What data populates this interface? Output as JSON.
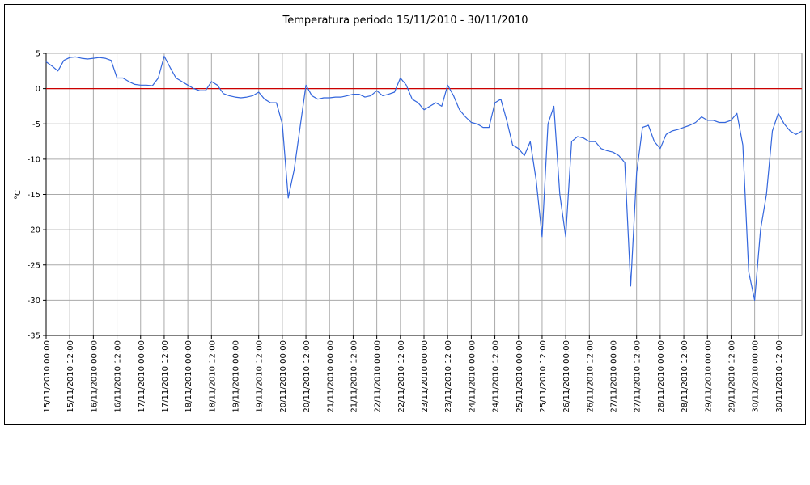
{
  "chart_data": {
    "type": "line",
    "title": "Temperatura periodo 15/11/2010 - 30/11/2010",
    "y_label": "°C",
    "x": [
      "15/11/2010 00:00",
      "15/11/2010 03:00",
      "15/11/2010 06:00",
      "15/11/2010 09:00",
      "15/11/2010 12:00",
      "15/11/2010 15:00",
      "15/11/2010 18:00",
      "15/11/2010 21:00",
      "16/11/2010 00:00",
      "16/11/2010 03:00",
      "16/11/2010 06:00",
      "16/11/2010 09:00",
      "16/11/2010 12:00",
      "16/11/2010 15:00",
      "16/11/2010 18:00",
      "16/11/2010 21:00",
      "17/11/2010 00:00",
      "17/11/2010 03:00",
      "17/11/2010 06:00",
      "17/11/2010 09:00",
      "17/11/2010 12:00",
      "17/11/2010 15:00",
      "17/11/2010 18:00",
      "17/11/2010 21:00",
      "18/11/2010 00:00",
      "18/11/2010 03:00",
      "18/11/2010 06:00",
      "18/11/2010 09:00",
      "18/11/2010 12:00",
      "18/11/2010 15:00",
      "18/11/2010 18:00",
      "18/11/2010 21:00",
      "19/11/2010 00:00",
      "19/11/2010 03:00",
      "19/11/2010 06:00",
      "19/11/2010 09:00",
      "19/11/2010 12:00",
      "19/11/2010 15:00",
      "19/11/2010 18:00",
      "19/11/2010 21:00",
      "20/11/2010 00:00",
      "20/11/2010 03:00",
      "20/11/2010 06:00",
      "20/11/2010 09:00",
      "20/11/2010 12:00",
      "20/11/2010 15:00",
      "20/11/2010 18:00",
      "20/11/2010 21:00",
      "21/11/2010 00:00",
      "21/11/2010 03:00",
      "21/11/2010 06:00",
      "21/11/2010 09:00",
      "21/11/2010 12:00",
      "21/11/2010 15:00",
      "21/11/2010 18:00",
      "21/11/2010 21:00",
      "22/11/2010 00:00",
      "22/11/2010 03:00",
      "22/11/2010 06:00",
      "22/11/2010 09:00",
      "22/11/2010 12:00",
      "22/11/2010 15:00",
      "22/11/2010 18:00",
      "22/11/2010 21:00",
      "23/11/2010 00:00",
      "23/11/2010 03:00",
      "23/11/2010 06:00",
      "23/11/2010 09:00",
      "23/11/2010 12:00",
      "23/11/2010 15:00",
      "23/11/2010 18:00",
      "23/11/2010 21:00",
      "24/11/2010 00:00",
      "24/11/2010 03:00",
      "24/11/2010 06:00",
      "24/11/2010 09:00",
      "24/11/2010 12:00",
      "24/11/2010 15:00",
      "24/11/2010 18:00",
      "24/11/2010 21:00",
      "25/11/2010 00:00",
      "25/11/2010 03:00",
      "25/11/2010 06:00",
      "25/11/2010 09:00",
      "25/11/2010 12:00",
      "25/11/2010 15:00",
      "25/11/2010 18:00",
      "25/11/2010 21:00",
      "26/11/2010 00:00",
      "26/11/2010 03:00",
      "26/11/2010 06:00",
      "26/11/2010 09:00",
      "26/11/2010 12:00",
      "26/11/2010 15:00",
      "26/11/2010 18:00",
      "26/11/2010 21:00",
      "27/11/2010 00:00",
      "27/11/2010 03:00",
      "27/11/2010 06:00",
      "27/11/2010 09:00",
      "27/11/2010 12:00",
      "27/11/2010 15:00",
      "27/11/2010 18:00",
      "27/11/2010 21:00",
      "28/11/2010 00:00",
      "28/11/2010 03:00",
      "28/11/2010 06:00",
      "28/11/2010 09:00",
      "28/11/2010 12:00",
      "28/11/2010 15:00",
      "28/11/2010 18:00",
      "28/11/2010 21:00",
      "29/11/2010 00:00",
      "29/11/2010 03:00",
      "29/11/2010 06:00",
      "29/11/2010 09:00",
      "29/11/2010 12:00",
      "29/11/2010 15:00",
      "29/11/2010 18:00",
      "29/11/2010 21:00",
      "30/11/2010 00:00",
      "30/11/2010 03:00",
      "30/11/2010 06:00",
      "30/11/2010 09:00",
      "30/11/2010 12:00",
      "30/11/2010 15:00",
      "30/11/2010 18:00",
      "30/11/2010 21:00",
      "01/12/2010 00:00"
    ],
    "values": [
      3.8,
      3.2,
      2.5,
      4.0,
      4.4,
      4.5,
      4.3,
      4.2,
      4.3,
      4.4,
      4.3,
      4.0,
      1.5,
      1.5,
      1.0,
      0.6,
      0.5,
      0.5,
      0.4,
      1.5,
      4.6,
      3.0,
      1.5,
      1.0,
      0.5,
      0,
      -0.3,
      -0.3,
      1.0,
      0.5,
      -0.7,
      -1.0,
      -1.2,
      -1.3,
      -1.2,
      -1.0,
      -0.5,
      -1.5,
      -2.0,
      -2.0,
      -5,
      -15.5,
      -11.5,
      -5.5,
      0.5,
      -1.0,
      -1.5,
      -1.3,
      -1.3,
      -1.2,
      -1.2,
      -1.0,
      -0.8,
      -0.8,
      -1.2,
      -1.0,
      -0.3,
      -1.0,
      -0.8,
      -0.5,
      1.5,
      0.5,
      -1.5,
      -2.0,
      -3.0,
      -2.5,
      -2.0,
      -2.5,
      0.5,
      -1.0,
      -3.0,
      -4.0,
      -4.8,
      -5.0,
      -5.5,
      -5.5,
      -2.0,
      -1.5,
      -4.5,
      -8.0,
      -8.5,
      -9.5,
      -7.5,
      -13,
      -21,
      -5,
      -2.5,
      -15,
      -21,
      -7.5,
      -6.8,
      -7.0,
      -7.5,
      -7.5,
      -8.5,
      -8.8,
      -9.0,
      -9.5,
      -10.5,
      -28,
      -12,
      -5.5,
      -5.2,
      -7.5,
      -8.5,
      -6.5,
      -6.0,
      -5.8,
      -5.5,
      -5.2,
      -4.8,
      -4.0,
      -4.5,
      -4.5,
      -4.8,
      -4.8,
      -4.5,
      -3.5,
      -8,
      -26,
      -30,
      -20,
      -15,
      -6,
      -3.5,
      -5,
      -6,
      -6.5,
      -6
    ],
    "color": "#3366dd",
    "xlim": [
      "15/11/2010 00:00",
      "01/12/2010 00:00"
    ],
    "xticks": [
      "15/11/2010 00:00",
      "15/11/2010 12:00",
      "16/11/2010 00:00",
      "16/11/2010 12:00",
      "17/11/2010 00:00",
      "17/11/2010 12:00",
      "18/11/2010 00:00",
      "18/11/2010 12:00",
      "19/11/2010 00:00",
      "19/11/2010 12:00",
      "20/11/2010 00:00",
      "20/11/2010 12:00",
      "21/11/2010 00:00",
      "21/11/2010 12:00",
      "22/11/2010 00:00",
      "22/11/2010 12:00",
      "23/11/2010 00:00",
      "23/11/2010 12:00",
      "24/11/2010 00:00",
      "24/11/2010 12:00",
      "25/11/2010 00:00",
      "25/11/2010 12:00",
      "26/11/2010 00:00",
      "26/11/2010 12:00",
      "27/11/2010 00:00",
      "27/11/2010 12:00",
      "28/11/2010 00:00",
      "28/11/2010 12:00",
      "29/11/2010 00:00",
      "29/11/2010 12:00",
      "30/11/2010 00:00",
      "30/11/2010 12:00"
    ],
    "ylim": [
      -35,
      5
    ],
    "yticks": [
      -35,
      -30,
      -25,
      -20,
      -15,
      -10,
      -5,
      0,
      5
    ],
    "grid": true,
    "reference_line": {
      "value": 0,
      "color": "#cc0000"
    }
  }
}
